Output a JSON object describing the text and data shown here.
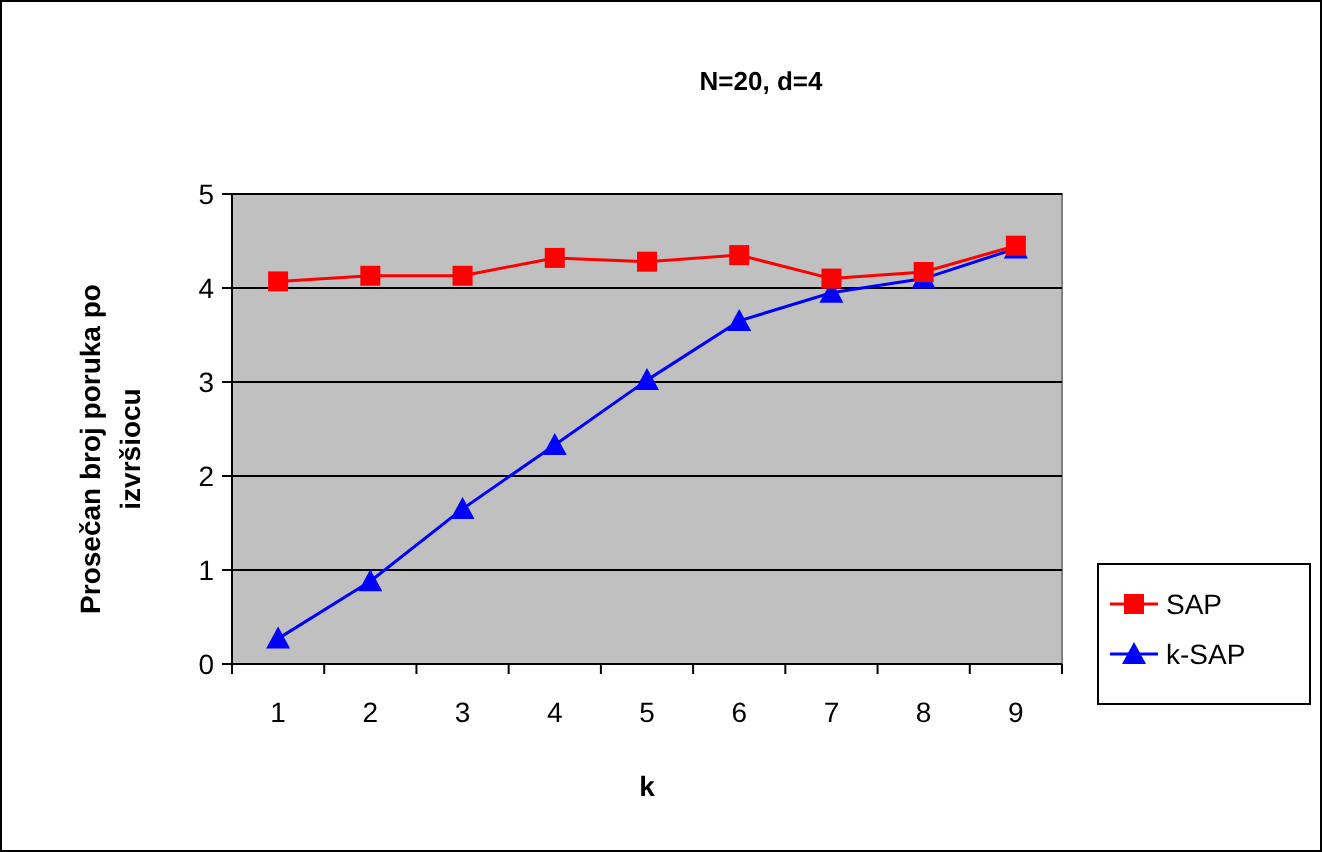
{
  "chart_data": {
    "type": "line",
    "title": "N=20, d=4",
    "xlabel": "k",
    "ylabel": "Prosečan broj poruka po izvršiocu",
    "categories": [
      "1",
      "2",
      "3",
      "4",
      "5",
      "6",
      "7",
      "8",
      "9"
    ],
    "series": [
      {
        "name": "SAP",
        "color": "#ff0000",
        "marker": "square",
        "values": [
          4.07,
          4.13,
          4.13,
          4.32,
          4.28,
          4.35,
          4.1,
          4.17,
          4.45
        ]
      },
      {
        "name": "k-SAP",
        "color": "#0000ff",
        "marker": "triangle",
        "values": [
          0.27,
          0.88,
          1.65,
          2.33,
          3.02,
          3.65,
          3.95,
          4.1,
          4.42
        ]
      }
    ],
    "ylim": [
      0,
      5
    ],
    "yticks": [
      0,
      1,
      2,
      3,
      4,
      5
    ],
    "grid": "y",
    "legend": "right"
  }
}
